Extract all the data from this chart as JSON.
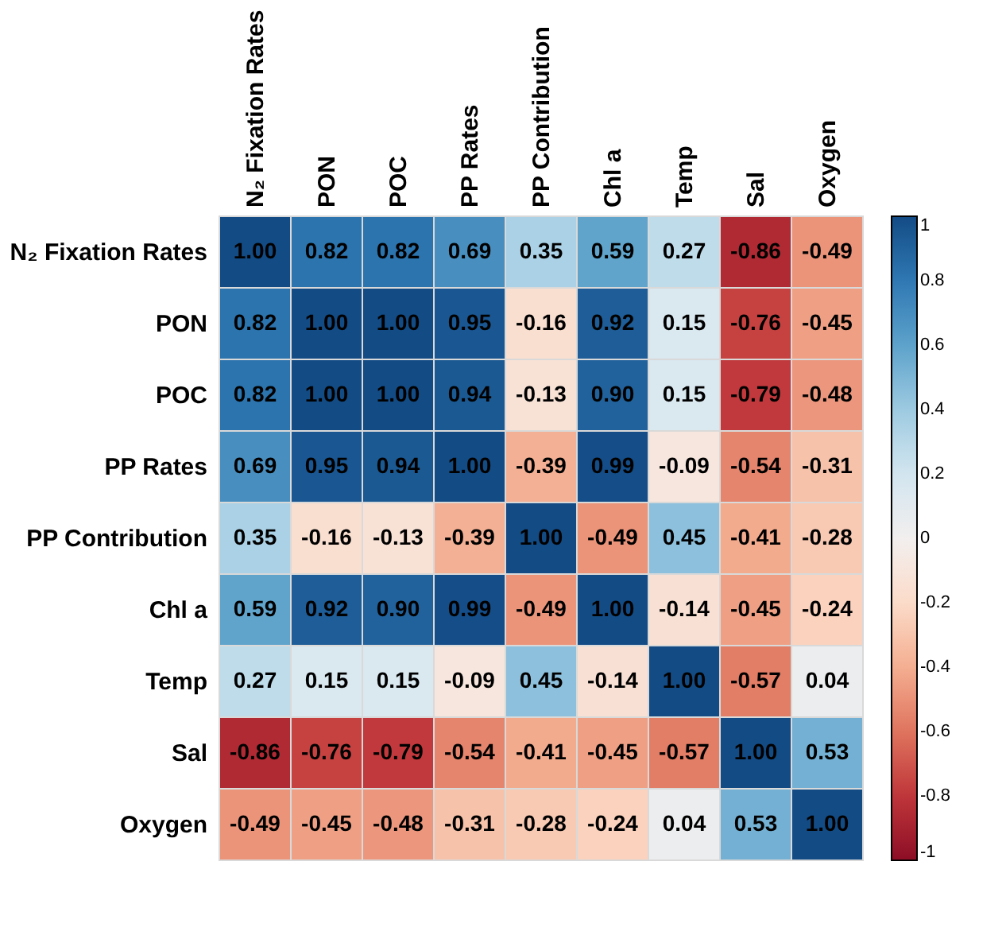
{
  "chart_data": {
    "type": "heatmap",
    "categories": [
      "N₂ Fixation Rates",
      "PON",
      "POC",
      "PP Rates",
      "PP Contribution",
      "Chl a",
      "Temp",
      "Sal",
      "Oxygen"
    ],
    "y_categories": [
      "N₂ Fixation Rates",
      "PON",
      "POC",
      "PP Rates",
      "PP Contribution",
      "Chl a",
      "Temp",
      "Sal",
      "Oxygen"
    ],
    "cells": [
      [
        1.0,
        0.82,
        0.82,
        0.69,
        0.35,
        0.59,
        0.27,
        -0.86,
        -0.49
      ],
      [
        0.82,
        1.0,
        1.0,
        0.95,
        -0.16,
        0.92,
        0.15,
        -0.76,
        -0.45
      ],
      [
        0.82,
        1.0,
        1.0,
        0.94,
        -0.13,
        0.9,
        0.15,
        -0.79,
        -0.48
      ],
      [
        0.69,
        0.95,
        0.94,
        1.0,
        -0.39,
        0.99,
        -0.09,
        -0.54,
        -0.31
      ],
      [
        0.35,
        -0.16,
        -0.13,
        -0.39,
        1.0,
        -0.49,
        0.45,
        -0.41,
        -0.28
      ],
      [
        0.59,
        0.92,
        0.9,
        0.99,
        -0.49,
        1.0,
        -0.14,
        -0.45,
        -0.24
      ],
      [
        0.27,
        0.15,
        0.15,
        -0.09,
        0.45,
        -0.14,
        1.0,
        -0.57,
        0.04
      ],
      [
        -0.86,
        -0.76,
        -0.79,
        -0.54,
        -0.41,
        -0.45,
        -0.57,
        1.0,
        0.53
      ],
      [
        -0.49,
        -0.45,
        -0.48,
        -0.31,
        -0.28,
        -0.24,
        0.04,
        0.53,
        1.0
      ]
    ],
    "cell_labels": [
      [
        "1.00",
        "0.82",
        "0.82",
        "0.69",
        "0.35",
        "0.59",
        "0.27",
        "-0.86",
        "-0.49"
      ],
      [
        "0.82",
        "1.00",
        "1.00",
        "0.95",
        "-0.16",
        "0.92",
        "0.15",
        "-0.76",
        "-0.45"
      ],
      [
        "0.82",
        "1.00",
        "1.00",
        "0.94",
        "-0.13",
        "0.90",
        "0.15",
        "-0.79",
        "-0.48"
      ],
      [
        "0.69",
        "0.95",
        "0.94",
        "1.00",
        "-0.39",
        "0.99",
        "-0.09",
        "-0.54",
        "-0.31"
      ],
      [
        "0.35",
        "-0.16",
        "-0.13",
        "-0.39",
        "1.00",
        "-0.49",
        "0.45",
        "-0.41",
        "-0.28"
      ],
      [
        "0.59",
        "0.92",
        "0.90",
        "0.99",
        "-0.49",
        "1.00",
        "-0.14",
        "-0.45",
        "-0.24"
      ],
      [
        "0.27",
        "0.15",
        "0.15",
        "-0.09",
        "0.45",
        "-0.14",
        "1.00",
        "-0.57",
        "0.04"
      ],
      [
        "-0.86",
        "-0.76",
        "-0.79",
        "-0.54",
        "-0.41",
        "-0.45",
        "-0.57",
        "1.00",
        "0.53"
      ],
      [
        "-0.49",
        "-0.45",
        "-0.48",
        "-0.31",
        "-0.28",
        "-0.24",
        "0.04",
        "0.53",
        "1.00"
      ]
    ],
    "clim": [
      -1,
      1
    ],
    "cticks": [
      -1,
      -0.8,
      -0.6,
      -0.4,
      -0.2,
      0,
      0.2,
      0.4,
      0.6,
      0.8,
      1
    ]
  }
}
